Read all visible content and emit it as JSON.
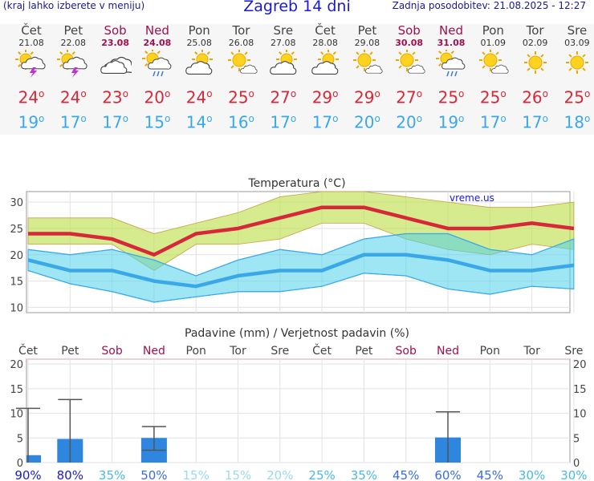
{
  "header": {
    "hint": "(kraj lahko izberete v meniju)",
    "city": "Zagreb 14 dni",
    "updated": "Zadnja posodobitev: 21.08.2025 - 12:27"
  },
  "colors": {
    "max": "#d62839",
    "min": "#3aa8e8",
    "weekend": "#a01050",
    "rain": "#2e86de"
  },
  "days": [
    {
      "name": "Čet",
      "date": "21.08",
      "weekend": false,
      "icon": "sun-cloud-thunder-icon",
      "max": "24",
      "min": "19"
    },
    {
      "name": "Pet",
      "date": "22.08",
      "weekend": false,
      "icon": "sun-cloud-thunder-icon",
      "max": "24",
      "min": "17"
    },
    {
      "name": "Sob",
      "date": "23.08",
      "weekend": true,
      "icon": "cloud-icon",
      "max": "23",
      "min": "17"
    },
    {
      "name": "Ned",
      "date": "24.08",
      "weekend": true,
      "icon": "sun-cloud-rain-icon",
      "max": "20",
      "min": "15"
    },
    {
      "name": "Pon",
      "date": "25.08",
      "weekend": false,
      "icon": "sun-cloud-icon",
      "max": "24",
      "min": "14"
    },
    {
      "name": "Tor",
      "date": "26.08",
      "weekend": false,
      "icon": "sun-small-cloud-icon",
      "max": "25",
      "min": "16"
    },
    {
      "name": "Sre",
      "date": "27.08",
      "weekend": false,
      "icon": "sun-cloud-icon",
      "max": "27",
      "min": "17"
    },
    {
      "name": "Čet",
      "date": "28.08",
      "weekend": false,
      "icon": "sun-cloud-icon",
      "max": "29",
      "min": "17"
    },
    {
      "name": "Pet",
      "date": "29.08",
      "weekend": false,
      "icon": "sun-small-cloud-icon",
      "max": "29",
      "min": "20"
    },
    {
      "name": "Sob",
      "date": "30.08",
      "weekend": true,
      "icon": "sun-small-cloud-icon",
      "max": "27",
      "min": "20"
    },
    {
      "name": "Ned",
      "date": "31.08",
      "weekend": true,
      "icon": "sun-cloud-rain-icon",
      "max": "25",
      "min": "19"
    },
    {
      "name": "Pon",
      "date": "01.09",
      "weekend": false,
      "icon": "sun-small-cloud-icon",
      "max": "25",
      "min": "17"
    },
    {
      "name": "Tor",
      "date": "02.09",
      "weekend": false,
      "icon": "sun-icon",
      "max": "26",
      "min": "17"
    },
    {
      "name": "Sre",
      "date": "03.09",
      "weekend": false,
      "icon": "sun-icon",
      "max": "25",
      "min": "18"
    }
  ],
  "chart_data": [
    {
      "type": "line",
      "title": "Temperatura (°C)",
      "watermark": "vreme.us",
      "ylim": [
        9,
        32
      ],
      "yticks": [
        10,
        15,
        20,
        25,
        30
      ],
      "grid": true,
      "series": [
        {
          "values": [
            24,
            24,
            23,
            20,
            24,
            25,
            27,
            29,
            29,
            27,
            25,
            25,
            26,
            25
          ]
        },
        {
          "values": [
            27,
            27,
            27,
            24,
            26,
            28,
            31,
            32,
            32,
            31,
            30,
            29,
            29,
            30
          ]
        },
        {
          "values": [
            22,
            22,
            22,
            17,
            22,
            22,
            23,
            26,
            26,
            23,
            21,
            20,
            22,
            21
          ]
        },
        {
          "values": [
            19,
            17,
            17,
            15,
            14,
            16,
            17,
            17,
            20,
            20,
            19,
            17,
            17,
            18
          ]
        },
        {
          "values": [
            21,
            20,
            21,
            19,
            16,
            19,
            21,
            20,
            23,
            24,
            24,
            21,
            20,
            23
          ]
        },
        {
          "values": [
            17,
            14.5,
            13,
            11,
            12,
            13,
            13,
            14,
            16.5,
            16,
            13.5,
            12.5,
            14,
            13.5
          ]
        }
      ]
    },
    {
      "type": "bar",
      "title": "Padavine (mm) / Verjetnost padavin (%)",
      "ylim": [
        0,
        21
      ],
      "yticks": [
        0,
        5,
        10,
        15,
        20
      ],
      "categories": [
        "Čet",
        "Pet",
        "Sob",
        "Ned",
        "Pon",
        "Tor",
        "Sre",
        "Čet",
        "Pet",
        "Sob",
        "Ned",
        "Pon",
        "Tor",
        "Sre"
      ],
      "values": [
        1.5,
        4.8,
        0,
        5,
        0,
        0,
        0,
        0,
        0,
        0,
        5.1,
        0,
        0,
        0
      ],
      "range_low": [
        0,
        0,
        null,
        2.5,
        null,
        null,
        null,
        null,
        null,
        null,
        0,
        null,
        null,
        null
      ],
      "range_high": [
        11,
        12.8,
        null,
        7.3,
        null,
        null,
        null,
        null,
        null,
        null,
        10.3,
        null,
        null,
        null
      ],
      "probability": [
        "90%",
        "80%",
        "35%",
        "50%",
        "15%",
        "15%",
        "20%",
        "25%",
        "35%",
        "45%",
        "60%",
        "45%",
        "30%",
        "30%"
      ],
      "probability_values": [
        90,
        80,
        35,
        50,
        15,
        15,
        20,
        25,
        35,
        45,
        60,
        45,
        30,
        30
      ]
    }
  ]
}
